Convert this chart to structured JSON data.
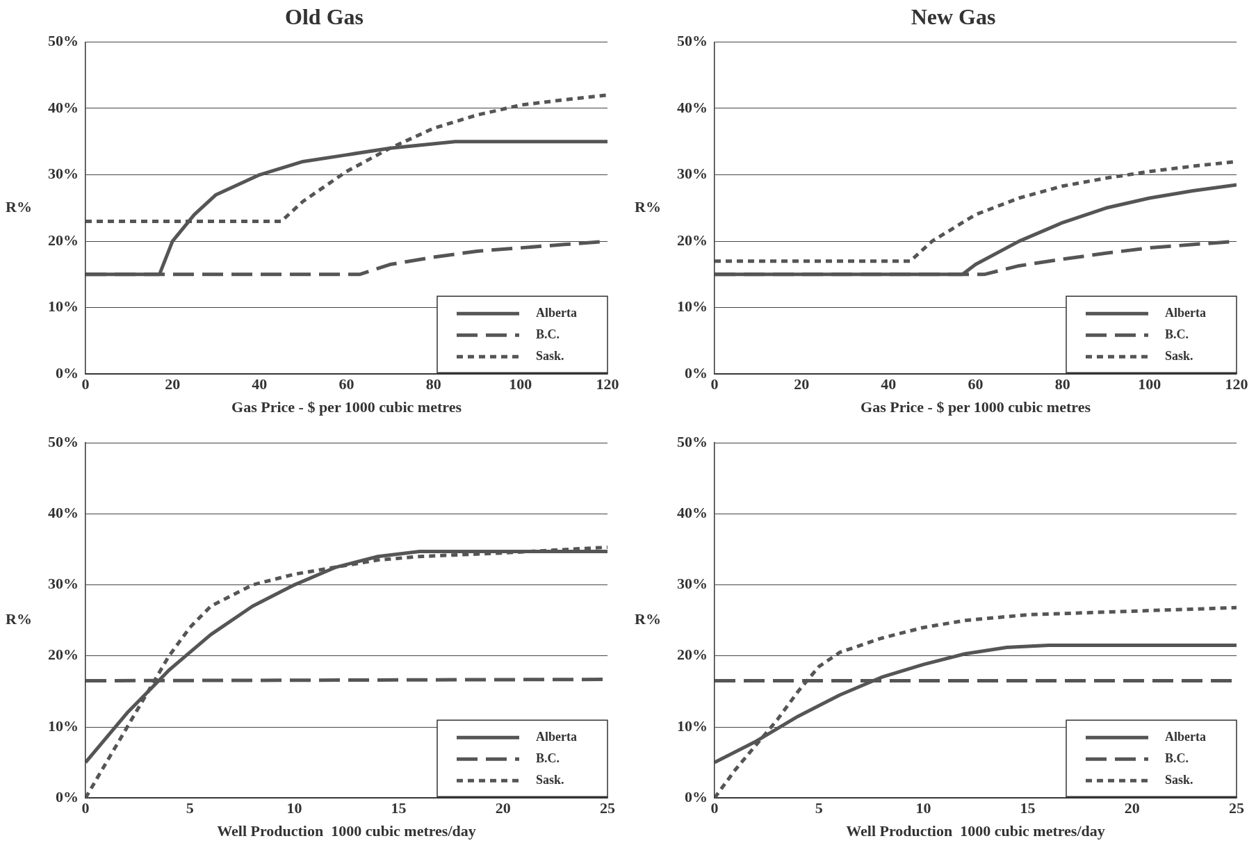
{
  "chart_data": [
    {
      "type": "line",
      "title": "Old Gas",
      "xlabel": "Gas Price - $ per 1000 cubic metres",
      "ylabel": "R%",
      "xlim": [
        0,
        120
      ],
      "xticks": [
        0,
        20,
        40,
        60,
        80,
        100,
        120
      ],
      "ylim": [
        0,
        50
      ],
      "yticks": [
        {
          "value": 0,
          "label": "0%"
        },
        {
          "value": 10,
          "label": "10%"
        },
        {
          "value": 20,
          "label": "20%"
        },
        {
          "value": 30,
          "label": "30%"
        },
        {
          "value": 40,
          "label": "40%"
        },
        {
          "value": 50,
          "label": "50%"
        }
      ],
      "grid": "y",
      "legend": "bottom right",
      "marker": "none",
      "series": [
        {
          "name": "Alberta",
          "color": "#555555",
          "line_style": "solid",
          "x": [
            0,
            17,
            20,
            25,
            30,
            40,
            50,
            60,
            70,
            85,
            120
          ],
          "values": [
            15,
            15,
            20,
            24,
            27,
            30,
            32,
            33,
            34,
            35,
            35
          ]
        },
        {
          "name": "B.C.",
          "color": "#555555",
          "line_style": "dashed",
          "x": [
            0,
            63,
            70,
            80,
            90,
            100,
            110,
            120
          ],
          "values": [
            15,
            15,
            16.5,
            17.6,
            18.5,
            19,
            19.5,
            20
          ]
        },
        {
          "name": "Sask.",
          "color": "#555555",
          "line_style": "dotted",
          "x": [
            0,
            45,
            50,
            60,
            70,
            80,
            90,
            100,
            110,
            120
          ],
          "values": [
            23,
            23,
            26,
            30.5,
            34,
            37,
            39,
            40.5,
            41.3,
            42
          ]
        }
      ]
    },
    {
      "type": "line",
      "title": "New Gas",
      "xlabel": "Gas Price - $ per 1000 cubic metres",
      "ylabel": "R%",
      "xlim": [
        0,
        120
      ],
      "xticks": [
        0,
        20,
        40,
        60,
        80,
        100,
        120
      ],
      "ylim": [
        0,
        50
      ],
      "yticks": [
        {
          "value": 0,
          "label": "0%"
        },
        {
          "value": 10,
          "label": "10%"
        },
        {
          "value": 20,
          "label": "20%"
        },
        {
          "value": 30,
          "label": "30%"
        },
        {
          "value": 40,
          "label": "40%"
        },
        {
          "value": 50,
          "label": "50%"
        }
      ],
      "grid": "y",
      "legend": "bottom right",
      "marker": "none",
      "series": [
        {
          "name": "Alberta",
          "color": "#555555",
          "line_style": "solid",
          "x": [
            0,
            57,
            60,
            70,
            80,
            90,
            100,
            110,
            120
          ],
          "values": [
            15,
            15,
            16.5,
            20,
            22.8,
            25,
            26.5,
            27.6,
            28.5
          ]
        },
        {
          "name": "B.C.",
          "color": "#555555",
          "line_style": "dashed",
          "x": [
            0,
            62,
            70,
            80,
            90,
            100,
            110,
            120
          ],
          "values": [
            15,
            15,
            16.3,
            17.3,
            18.2,
            19,
            19.5,
            20
          ]
        },
        {
          "name": "Sask.",
          "color": "#555555",
          "line_style": "dotted",
          "x": [
            0,
            45,
            50,
            60,
            70,
            80,
            90,
            100,
            110,
            120
          ],
          "values": [
            17,
            17,
            20,
            24,
            26.5,
            28.3,
            29.5,
            30.5,
            31.3,
            32
          ]
        }
      ]
    },
    {
      "type": "line",
      "xlabel": "Well Production  1000 cubic metres/day",
      "ylabel": "R%",
      "xlim": [
        0,
        25
      ],
      "xticks": [
        0,
        5,
        10,
        15,
        20,
        25
      ],
      "ylim": [
        0,
        50
      ],
      "yticks": [
        {
          "value": 0,
          "label": "0%"
        },
        {
          "value": 10,
          "label": "10%"
        },
        {
          "value": 20,
          "label": "20%"
        },
        {
          "value": 30,
          "label": "30%"
        },
        {
          "value": 40,
          "label": "40%"
        },
        {
          "value": 50,
          "label": "50%"
        }
      ],
      "grid": "y",
      "legend": "bottom right",
      "marker": "none",
      "series": [
        {
          "name": "Alberta",
          "color": "#555555",
          "line_style": "solid",
          "x": [
            0,
            1,
            2,
            3,
            4,
            5,
            6,
            8,
            10,
            12,
            14,
            16,
            20,
            25
          ],
          "values": [
            5,
            8.5,
            12,
            15,
            18,
            20.5,
            23,
            27,
            30,
            32.5,
            34,
            34.7,
            34.7,
            34.7
          ]
        },
        {
          "name": "B.C.",
          "color": "#555555",
          "line_style": "dashed",
          "x": [
            0,
            25
          ],
          "values": [
            16.5,
            16.7
          ]
        },
        {
          "name": "Sask.",
          "color": "#555555",
          "line_style": "dotted",
          "x": [
            0,
            1,
            2,
            3,
            4,
            5,
            6,
            8,
            10,
            12,
            14,
            16,
            20,
            25
          ],
          "values": [
            0,
            5,
            10,
            15,
            20,
            24,
            27,
            30,
            31.5,
            32.5,
            33.5,
            34,
            34.5,
            35.3
          ]
        }
      ]
    },
    {
      "type": "line",
      "xlabel": "Well Production  1000 cubic metres/day",
      "ylabel": "R%",
      "xlim": [
        0,
        25
      ],
      "xticks": [
        0,
        5,
        10,
        15,
        20,
        25
      ],
      "ylim": [
        0,
        50
      ],
      "yticks": [
        {
          "value": 0,
          "label": "0%"
        },
        {
          "value": 10,
          "label": "10%"
        },
        {
          "value": 20,
          "label": "20%"
        },
        {
          "value": 30,
          "label": "30%"
        },
        {
          "value": 40,
          "label": "40%"
        },
        {
          "value": 50,
          "label": "50%"
        }
      ],
      "grid": "y",
      "legend": "bottom right",
      "marker": "none",
      "series": [
        {
          "name": "Alberta",
          "color": "#555555",
          "line_style": "solid",
          "x": [
            0,
            2,
            4,
            6,
            8,
            10,
            12,
            14,
            16,
            25
          ],
          "values": [
            5,
            8,
            11.5,
            14.5,
            17,
            18.8,
            20.3,
            21.2,
            21.5,
            21.5
          ]
        },
        {
          "name": "B.C.",
          "color": "#555555",
          "line_style": "dashed",
          "x": [
            0,
            25
          ],
          "values": [
            16.5,
            16.5
          ]
        },
        {
          "name": "Sask.",
          "color": "#555555",
          "line_style": "dotted",
          "x": [
            0,
            1,
            2,
            3,
            4,
            5,
            6,
            8,
            10,
            12,
            15,
            20,
            25
          ],
          "values": [
            0,
            4,
            7.5,
            11,
            15,
            18.5,
            20.5,
            22.5,
            24,
            25,
            25.8,
            26.3,
            26.8
          ]
        }
      ]
    }
  ]
}
